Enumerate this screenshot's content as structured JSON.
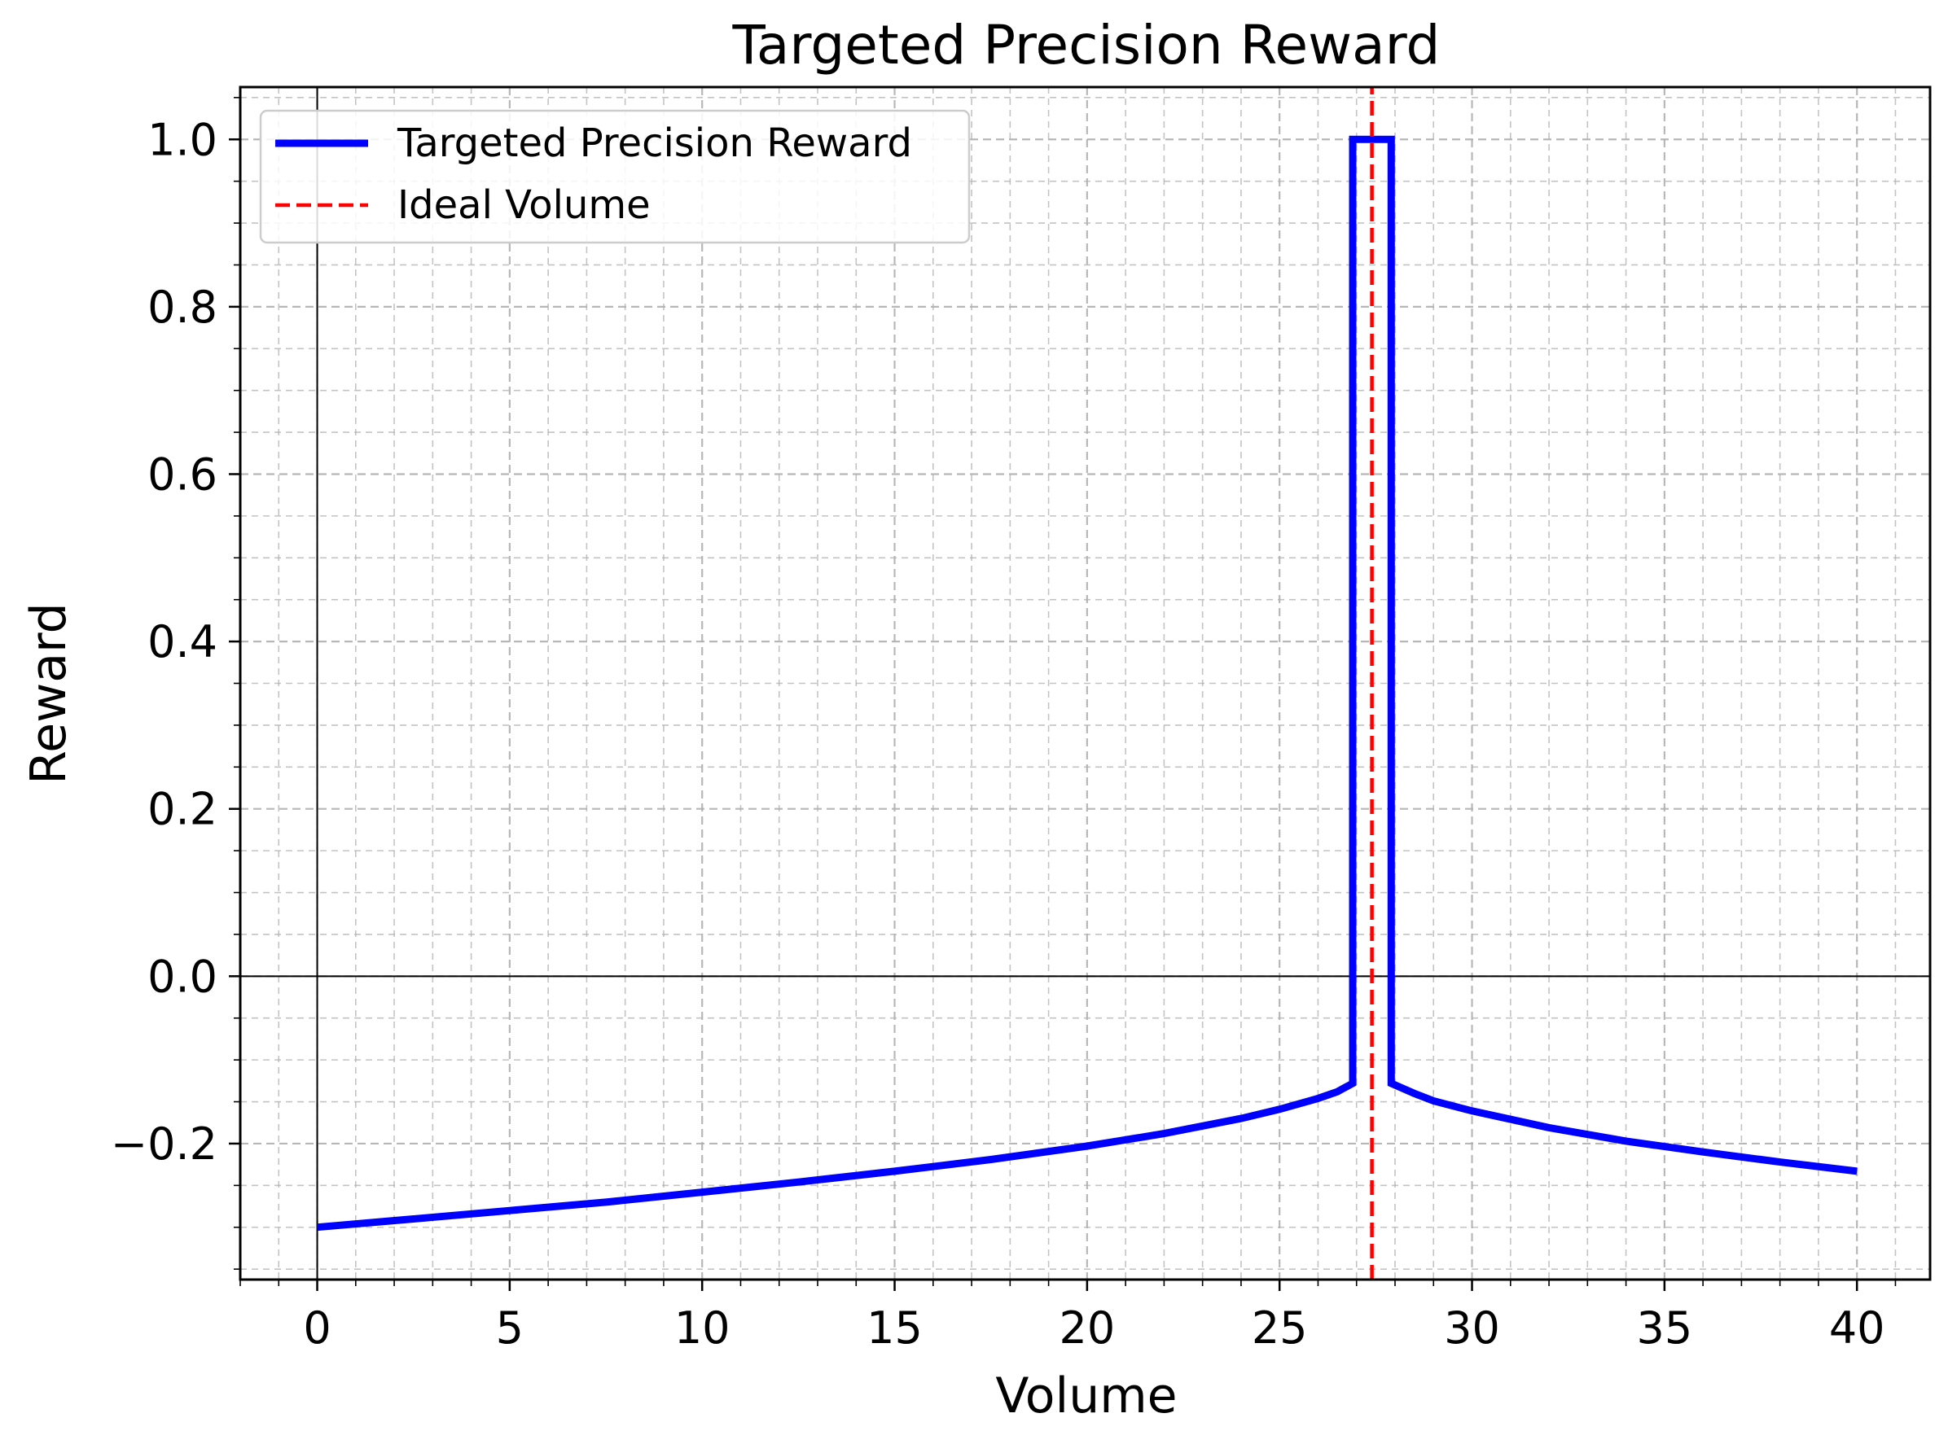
{
  "chart_data": {
    "type": "line",
    "title": "Targeted Precision Reward",
    "xlabel": "Volume",
    "ylabel": "Reward",
    "xlim": [
      -2,
      41.9
    ],
    "ylim": [
      -0.3625,
      1.0625
    ],
    "xticks": [
      0,
      5,
      10,
      15,
      20,
      25,
      30,
      35,
      40
    ],
    "yticks": [
      -0.2,
      0.0,
      0.2,
      0.4,
      0.6,
      0.8,
      1.0
    ],
    "xtick_labels": [
      "0",
      "5",
      "10",
      "15",
      "20",
      "25",
      "30",
      "35",
      "40"
    ],
    "ytick_labels": [
      "−0.2",
      "0.0",
      "0.2",
      "0.4",
      "0.6",
      "0.8",
      "1.0"
    ],
    "grid": true,
    "minor_grid": true,
    "legend_position": "top-left",
    "series": [
      {
        "name": "Targeted Precision Reward",
        "color": "#0000ff",
        "style": "solid",
        "x": [
          0,
          2.5,
          5,
          7.5,
          10,
          12.5,
          15,
          17.5,
          20,
          22,
          24,
          25,
          26,
          26.5,
          26.9,
          26.9,
          27.9,
          27.9,
          28.5,
          29,
          30,
          32,
          34,
          36,
          38,
          40
        ],
        "y": [
          -0.3,
          -0.29,
          -0.28,
          -0.27,
          -0.258,
          -0.246,
          -0.233,
          -0.219,
          -0.203,
          -0.188,
          -0.17,
          -0.159,
          -0.146,
          -0.138,
          -0.128,
          1.0,
          1.0,
          -0.128,
          -0.14,
          -0.149,
          -0.161,
          -0.181,
          -0.197,
          -0.21,
          -0.222,
          -0.233
        ]
      },
      {
        "name": "Ideal Volume",
        "color": "#ff0000",
        "style": "dashed",
        "x": [
          27.4,
          27.4
        ],
        "y": [
          -0.3625,
          1.0625
        ]
      }
    ],
    "reference_lines": {
      "x_zero": 0,
      "y_zero": 0
    }
  }
}
